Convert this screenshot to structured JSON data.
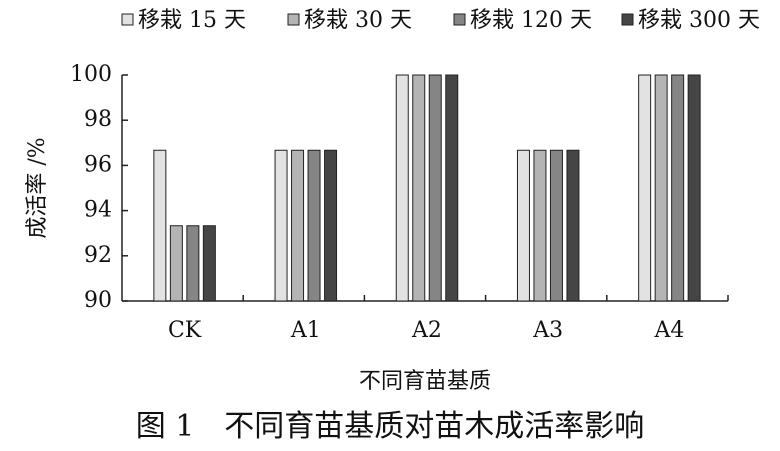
{
  "chart_data": {
    "type": "bar",
    "categories": [
      "CK",
      "A1",
      "A2",
      "A3",
      "A4"
    ],
    "series": [
      {
        "name": "移栽 15 天",
        "color": "#e2e2e2",
        "values": [
          96.67,
          96.67,
          100,
          96.67,
          100
        ]
      },
      {
        "name": "移栽 30 天",
        "color": "#b4b4b4",
        "values": [
          93.33,
          96.67,
          100,
          96.67,
          100
        ]
      },
      {
        "name": "移栽 120 天",
        "color": "#858585",
        "values": [
          93.33,
          96.67,
          100,
          96.67,
          100
        ]
      },
      {
        "name": "移栽 300 天",
        "color": "#454545",
        "values": [
          93.33,
          96.67,
          100,
          96.67,
          100
        ]
      }
    ],
    "ylabel": "成活率 /%",
    "xlabel": "不同育苗基质",
    "caption": "图 1　不同育苗基质对苗木成活率影响",
    "ylim": [
      90,
      100
    ],
    "yticks": [
      90,
      92,
      94,
      96,
      98,
      100
    ]
  }
}
